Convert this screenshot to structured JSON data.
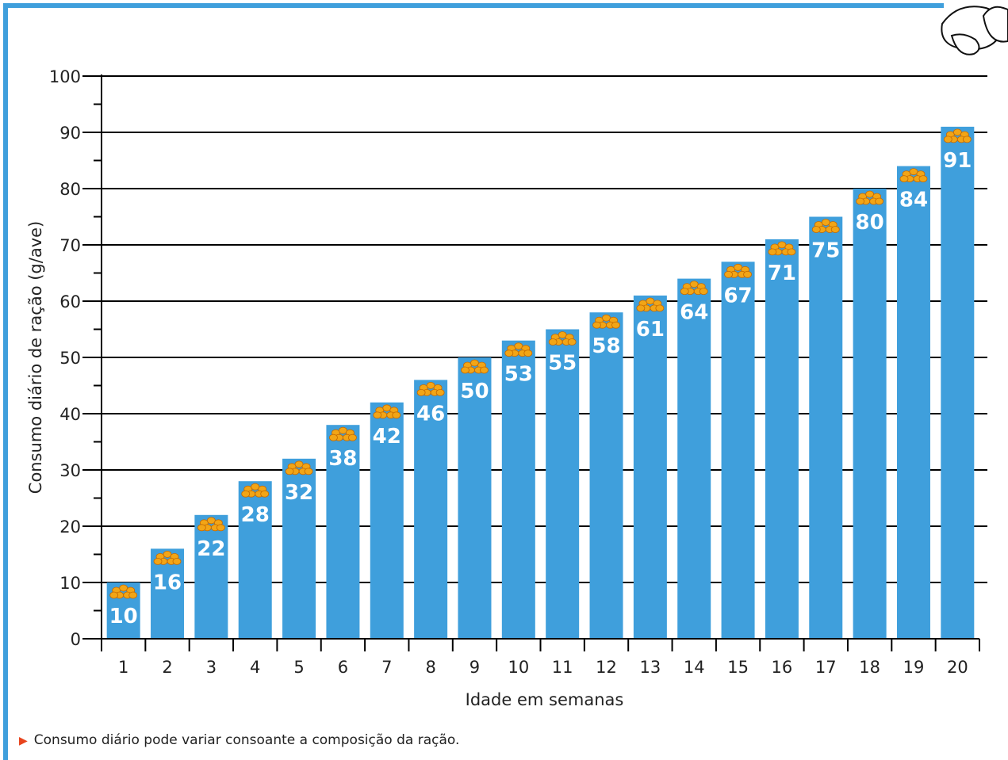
{
  "colors": {
    "frame": "#3f9fdc",
    "bar": "#3f9fdc",
    "bar_label": "#ffffff",
    "grid": "#000000",
    "text": "#222222",
    "icon": "#f2a516",
    "footnote_marker": "#e8441d"
  },
  "icons": {
    "bar_icon": "grain-feed-icon",
    "corner_icon": "seeds-icon"
  },
  "footnote": {
    "marker": "▶",
    "text": "Consumo diário pode variar consoante a composição da ração."
  },
  "chart_data": {
    "type": "bar",
    "xlabel": "Idade em semanas",
    "ylabel": "Consumo diário de ração (g/ave)",
    "ylim": [
      0,
      100
    ],
    "yticks": [
      0,
      10,
      20,
      30,
      40,
      50,
      60,
      70,
      80,
      90,
      100
    ],
    "grid": true,
    "categories": [
      "1",
      "2",
      "3",
      "4",
      "5",
      "6",
      "7",
      "8",
      "9",
      "10",
      "11",
      "12",
      "13",
      "14",
      "15",
      "16",
      "17",
      "18",
      "19",
      "20"
    ],
    "values": [
      10,
      16,
      22,
      28,
      32,
      38,
      42,
      46,
      50,
      53,
      55,
      58,
      61,
      64,
      67,
      71,
      75,
      80,
      84,
      91
    ],
    "data_labels": [
      "10",
      "16",
      "22",
      "28",
      "32",
      "38",
      "42",
      "46",
      "50",
      "53",
      "55",
      "58",
      "61",
      "64",
      "67",
      "71",
      "75",
      "80",
      "84",
      "91"
    ]
  }
}
